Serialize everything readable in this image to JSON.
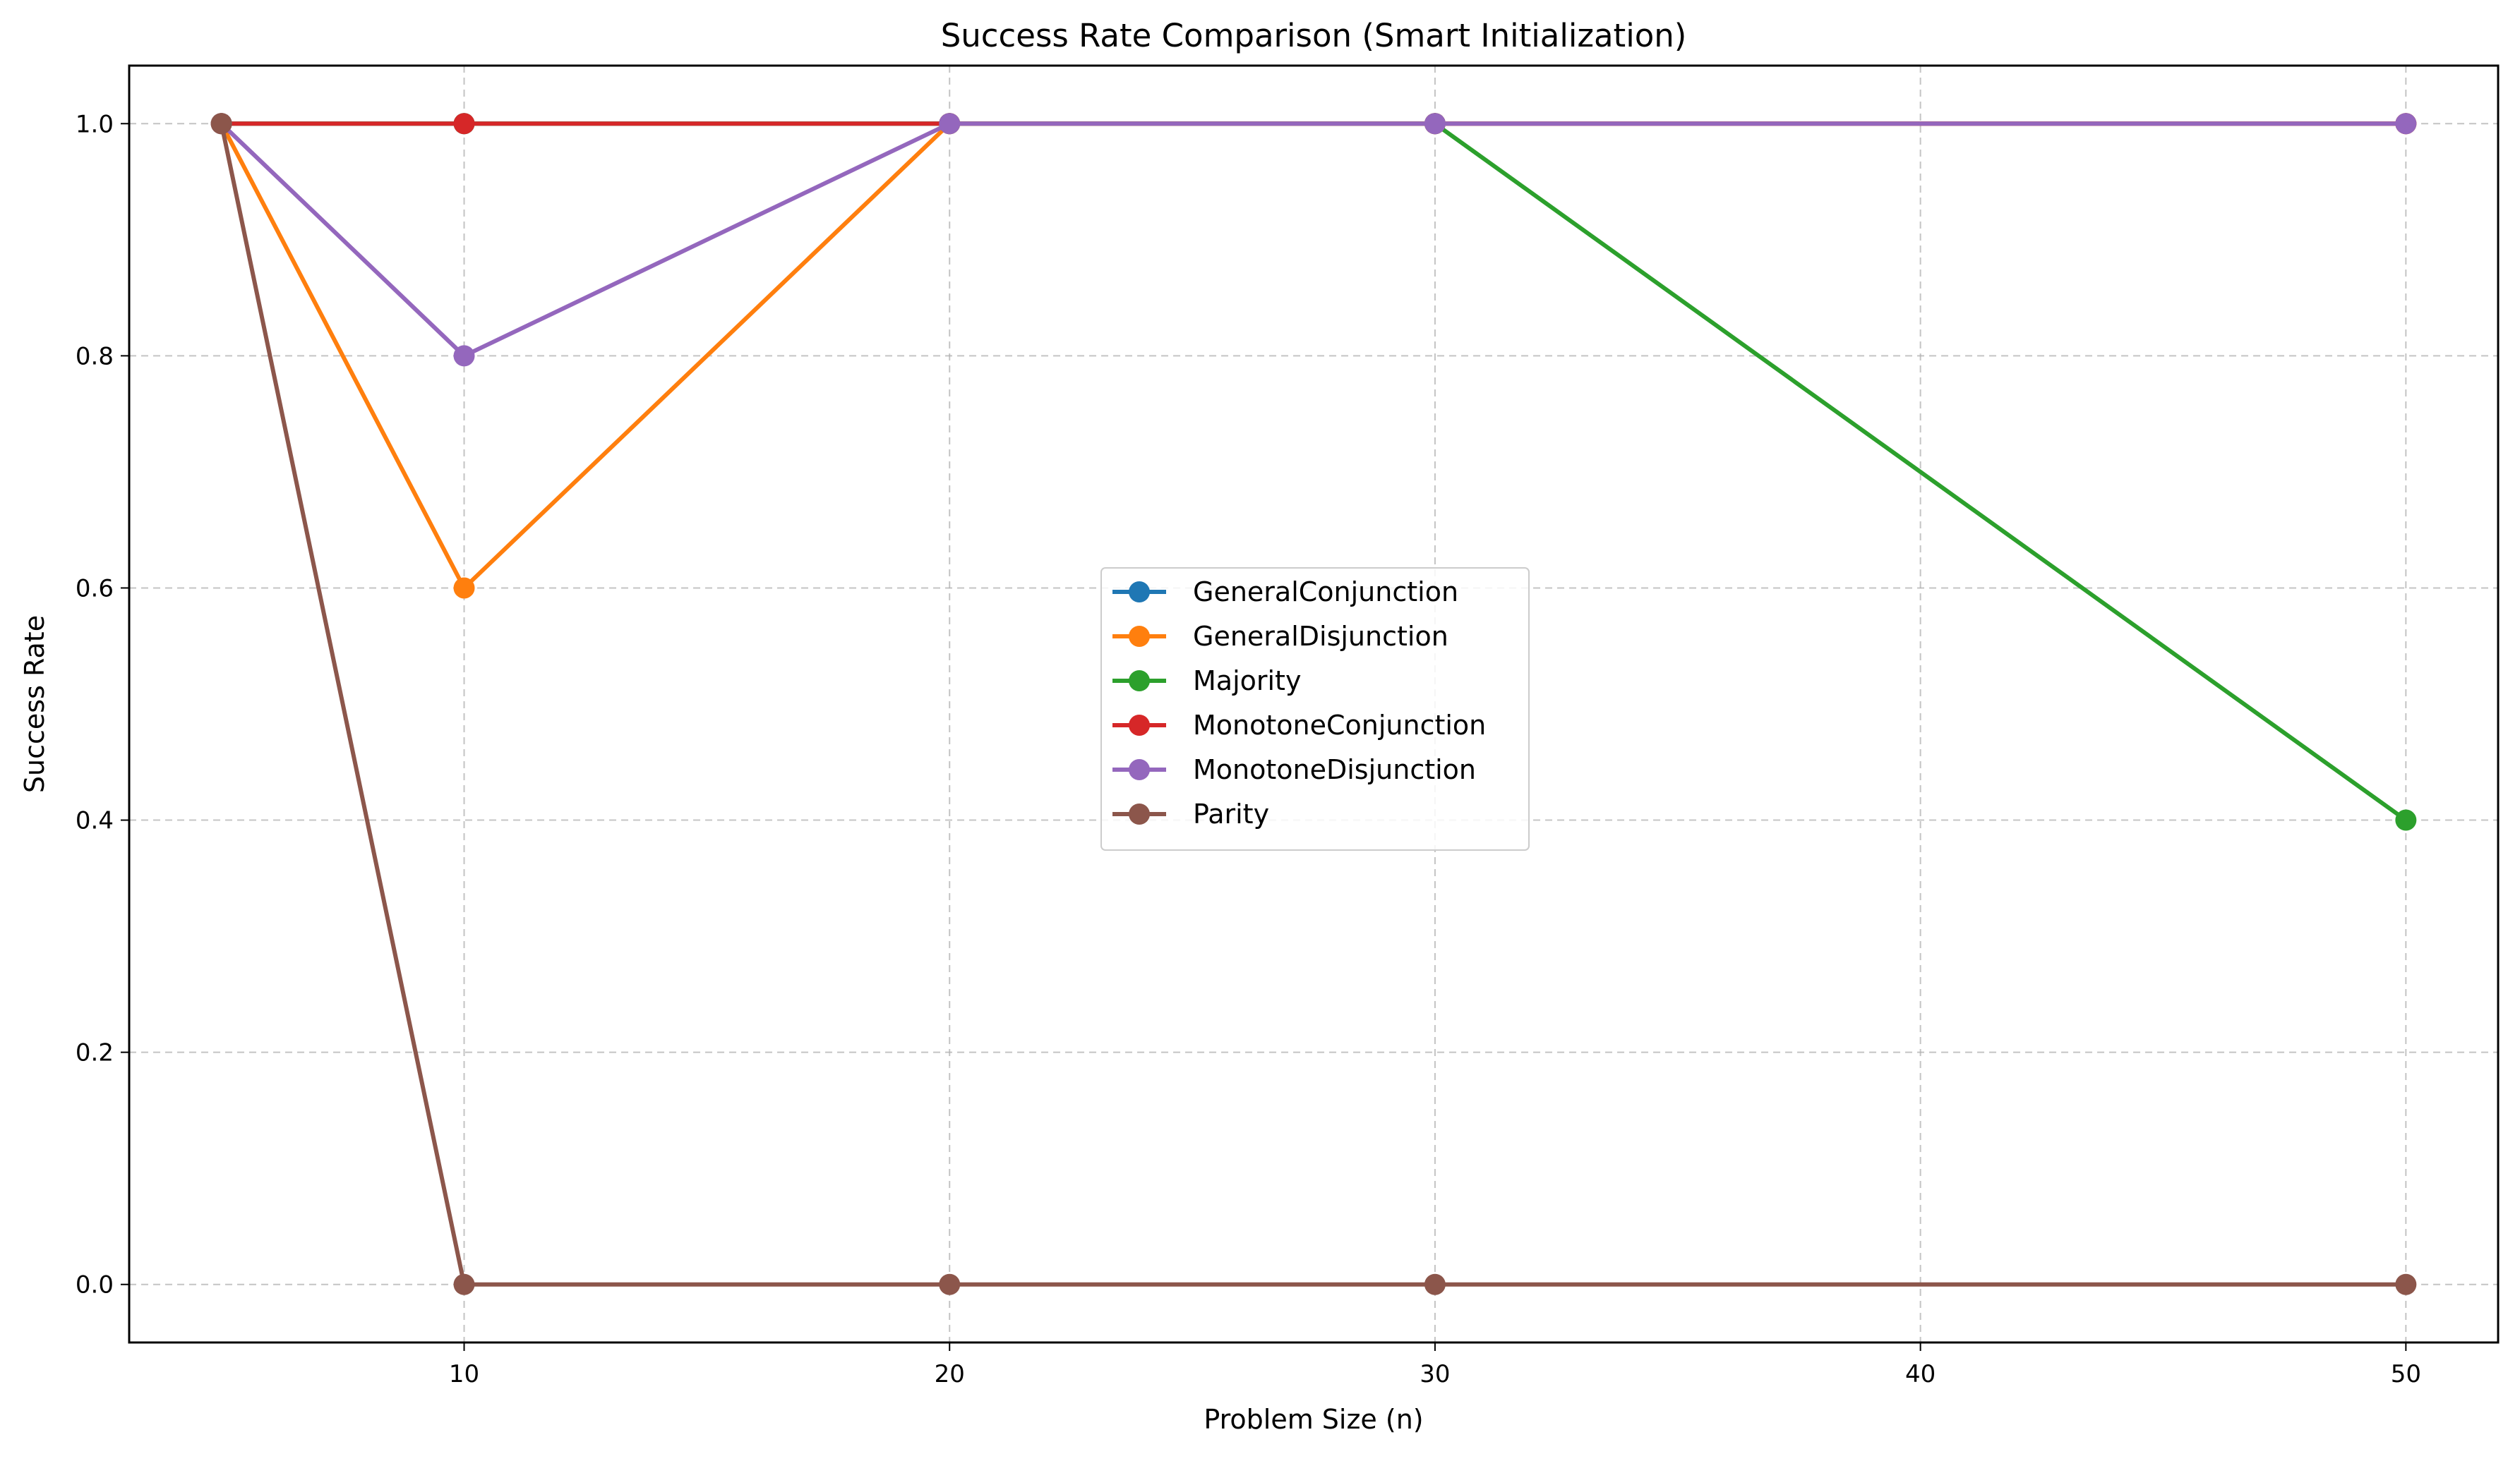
{
  "chart_data": {
    "type": "line",
    "title": "Success Rate Comparison (Smart Initialization)",
    "xlabel": "Problem Size (n)",
    "ylabel": "Success Rate",
    "xlim": [
      3.1,
      51.9
    ],
    "ylim": [
      -0.05,
      1.05
    ],
    "xticks": [
      10,
      20,
      30,
      40,
      50
    ],
    "xtick_labels": [
      "10",
      "20",
      "30",
      "40",
      "50"
    ],
    "yticks": [
      0.0,
      0.2,
      0.4,
      0.6,
      0.8,
      1.0
    ],
    "ytick_labels": [
      "0.0",
      "0.2",
      "0.4",
      "0.6",
      "0.8",
      "1.0"
    ],
    "grid": true,
    "legend_position": "center",
    "x": [
      5,
      10,
      20,
      30,
      50
    ],
    "series": [
      {
        "name": "GeneralConjunction",
        "color": "#1f77b4",
        "values": [
          1.0,
          1.0,
          1.0,
          1.0,
          1.0
        ]
      },
      {
        "name": "GeneralDisjunction",
        "color": "#ff7f0e",
        "values": [
          1.0,
          0.6,
          1.0,
          1.0,
          1.0
        ]
      },
      {
        "name": "Majority",
        "color": "#2ca02c",
        "values": [
          1.0,
          1.0,
          1.0,
          1.0,
          0.4
        ]
      },
      {
        "name": "MonotoneConjunction",
        "color": "#d62728",
        "values": [
          1.0,
          1.0,
          1.0,
          1.0,
          1.0
        ]
      },
      {
        "name": "MonotoneDisjunction",
        "color": "#9467bd",
        "values": [
          1.0,
          0.8,
          1.0,
          1.0,
          1.0
        ]
      },
      {
        "name": "Parity",
        "color": "#8c564b",
        "values": [
          1.0,
          0.0,
          0.0,
          0.0,
          0.0
        ]
      }
    ]
  }
}
